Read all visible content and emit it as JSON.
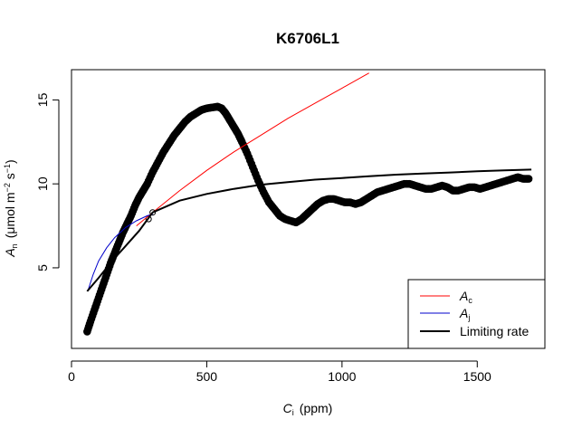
{
  "chart_data": {
    "type": "scatter",
    "title": "K6706L1",
    "xlabel": {
      "main": "C",
      "sub": "i",
      "unit": "(ppm)"
    },
    "ylabel": {
      "main": "A",
      "sub": "n",
      "unit_open": "(",
      "unit_mu": "μmol m",
      "unit_exp1": "−2",
      "unit_s": " s",
      "unit_exp2": "−1",
      "unit_close": ")"
    },
    "xlim": [
      0,
      1750
    ],
    "ylim": [
      0.2,
      16.8
    ],
    "x_ticks": [
      0,
      500,
      1000,
      1500
    ],
    "y_ticks": [
      5,
      10,
      15
    ],
    "grid": false,
    "legend_position": "bottom-right",
    "legend": [
      {
        "main": "A",
        "sub": "c",
        "color": "#ff0000",
        "width": 1
      },
      {
        "main": "A",
        "sub": "j",
        "color": "#0000cc",
        "width": 1
      },
      {
        "text": "Limiting rate",
        "color": "#000000",
        "width": 2
      }
    ],
    "series": [
      {
        "kind": "points",
        "color": "#000000",
        "x": [
          58,
          70,
          85,
          100,
          115,
          130,
          145,
          160,
          175,
          190,
          205,
          220,
          235,
          250,
          265,
          280,
          300,
          320,
          340,
          360,
          380,
          400,
          420,
          440,
          460,
          480,
          500,
          520,
          540,
          555,
          570,
          585,
          600,
          615,
          630,
          650,
          670,
          690,
          710,
          730,
          750,
          770,
          790,
          810,
          830,
          850,
          870,
          890,
          910,
          930,
          950,
          970,
          990,
          1010,
          1030,
          1050,
          1070,
          1090,
          1110,
          1130,
          1150,
          1170,
          1190,
          1210,
          1230,
          1250,
          1270,
          1290,
          1310,
          1330,
          1350,
          1370,
          1390,
          1410,
          1430,
          1450,
          1470,
          1490,
          1510,
          1530,
          1550,
          1570,
          1590,
          1610,
          1630,
          1650,
          1670,
          1690
        ],
        "y": [
          1.2,
          1.8,
          2.5,
          3.2,
          3.9,
          4.6,
          5.3,
          5.9,
          6.5,
          7.1,
          7.6,
          8.1,
          8.7,
          9.2,
          9.6,
          10.0,
          10.7,
          11.3,
          11.9,
          12.4,
          12.9,
          13.3,
          13.7,
          14.0,
          14.2,
          14.4,
          14.5,
          14.55,
          14.6,
          14.5,
          14.2,
          13.8,
          13.4,
          13.0,
          12.5,
          11.8,
          11.0,
          10.2,
          9.5,
          8.9,
          8.5,
          8.1,
          7.9,
          7.8,
          7.7,
          7.9,
          8.2,
          8.5,
          8.8,
          9.0,
          9.1,
          9.1,
          9.0,
          8.9,
          8.9,
          8.8,
          8.9,
          9.1,
          9.3,
          9.5,
          9.6,
          9.7,
          9.8,
          9.9,
          10.0,
          10.0,
          9.9,
          9.8,
          9.7,
          9.7,
          9.8,
          9.9,
          9.8,
          9.6,
          9.6,
          9.7,
          9.8,
          9.8,
          9.7,
          9.8,
          9.9,
          10.0,
          10.1,
          10.2,
          10.3,
          10.4,
          10.3,
          10.3
        ]
      },
      {
        "kind": "open-points",
        "color": "#000000",
        "x": [
          285,
          300
        ],
        "y": [
          7.9,
          8.3
        ]
      },
      {
        "name": "A_c",
        "kind": "line",
        "color": "#ff0000",
        "x": [
          240,
          300,
          400,
          500,
          600,
          700,
          800,
          900,
          1000,
          1100
        ],
        "y": [
          7.5,
          8.3,
          9.6,
          10.8,
          11.9,
          12.9,
          13.9,
          14.8,
          15.7,
          16.6
        ]
      },
      {
        "name": "A_j",
        "kind": "line",
        "color": "#0000cc",
        "x": [
          60,
          80,
          100,
          130,
          160,
          200,
          240,
          280,
          300
        ],
        "y": [
          3.6,
          4.6,
          5.4,
          6.2,
          6.8,
          7.4,
          7.8,
          8.1,
          8.2
        ]
      },
      {
        "name": "Limiting rate",
        "kind": "line",
        "color": "#000000",
        "x": [
          58,
          100,
          150,
          200,
          250,
          300,
          400,
          500,
          600,
          700,
          800,
          900,
          1000,
          1100,
          1200,
          1300,
          1400,
          1500,
          1600,
          1700
        ],
        "y": [
          3.6,
          4.4,
          5.4,
          6.3,
          7.2,
          8.3,
          9.0,
          9.4,
          9.7,
          9.95,
          10.1,
          10.25,
          10.35,
          10.45,
          10.55,
          10.62,
          10.68,
          10.75,
          10.8,
          10.85
        ]
      }
    ]
  }
}
